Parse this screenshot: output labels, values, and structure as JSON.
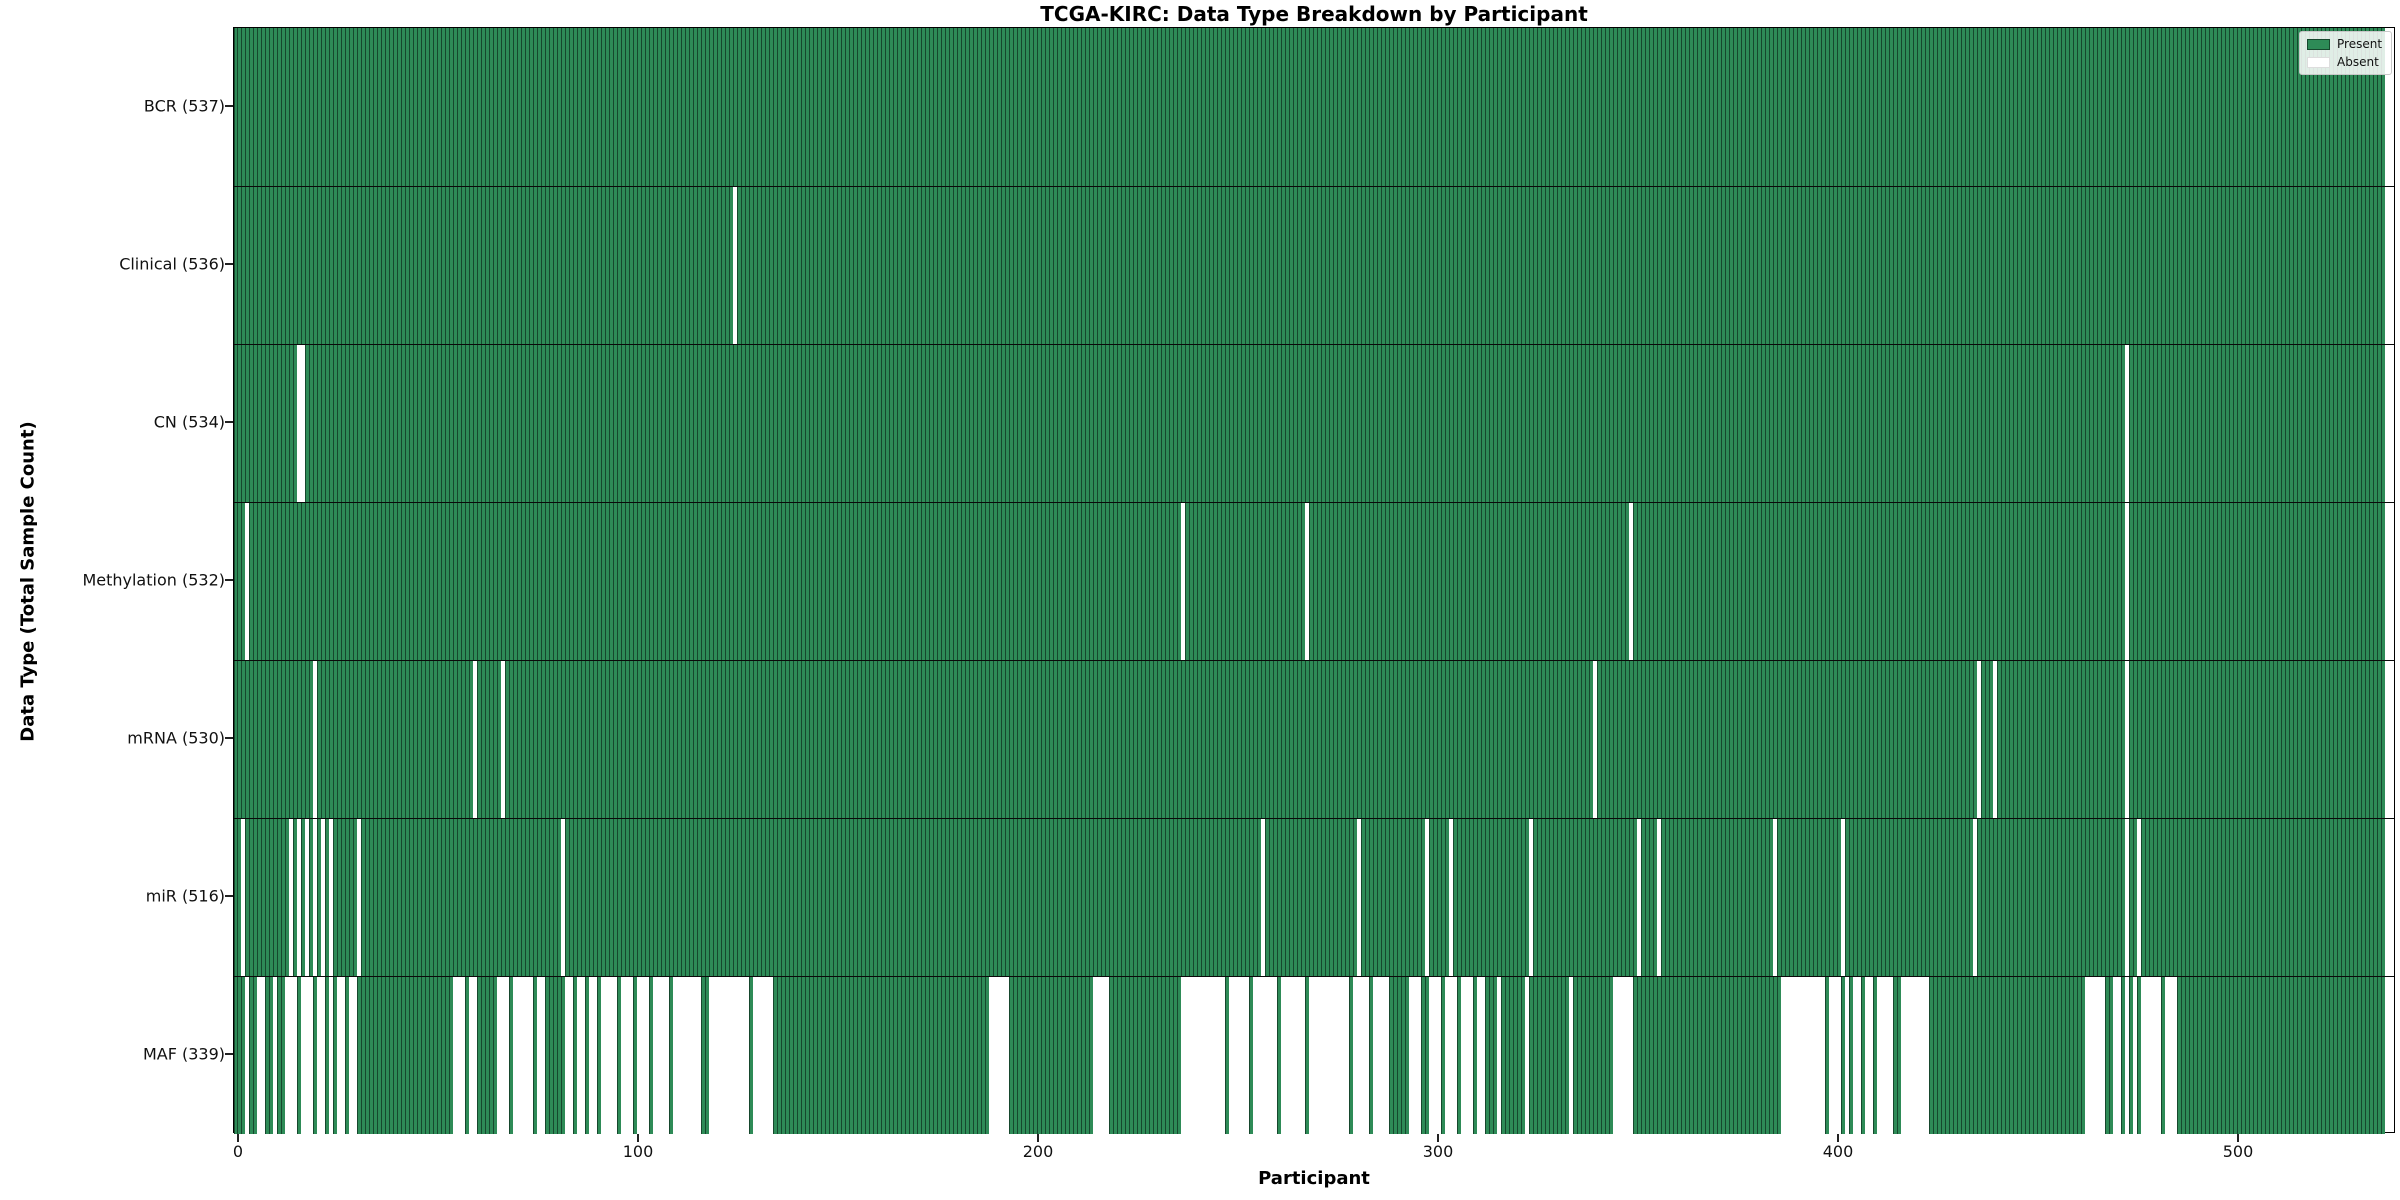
{
  "figure": {
    "title": "TCGA-KIRC: Data Type Breakdown by Participant"
  },
  "chart_data": {
    "type": "heatmap",
    "title": "TCGA-KIRC: Data Type Breakdown by Participant",
    "xlabel": "Participant",
    "ylabel": "Data Type (Total Sample Count)",
    "x_ticks": [
      0,
      100,
      200,
      300,
      400,
      500
    ],
    "n_participants": 537,
    "x_range": [
      0,
      541
    ],
    "grid": false,
    "colors": {
      "present": "#2e8b57",
      "edge": "#16482d",
      "absent": "#ffffff"
    },
    "legend": {
      "position": "upper right",
      "items": [
        {
          "label": "Present",
          "color": "#2e8b57"
        },
        {
          "label": "Absent",
          "color": "#ffffff"
        }
      ]
    },
    "rows": [
      {
        "label": "BCR (537)",
        "name": "BCR",
        "present_count": 537,
        "absent_participants": []
      },
      {
        "label": "Clinical (536)",
        "name": "Clinical",
        "present_count": 536,
        "absent_participants": [
          124
        ]
      },
      {
        "label": "CN (534)",
        "name": "CN",
        "present_count": 534,
        "absent_participants": [
          15,
          16,
          472
        ]
      },
      {
        "label": "Methylation (532)",
        "name": "Methylation",
        "present_count": 532,
        "absent_participants": [
          2,
          236,
          267,
          348,
          472
        ]
      },
      {
        "label": "mRNA (530)",
        "name": "mRNA",
        "present_count": 530,
        "absent_participants": [
          19,
          59,
          66,
          339,
          435,
          439,
          472
        ]
      },
      {
        "label": "miR (516)",
        "name": "miR",
        "present_count": 516,
        "absent_participants": [
          1,
          13,
          15,
          17,
          19,
          21,
          23,
          30,
          81,
          256,
          280,
          297,
          303,
          323,
          350,
          355,
          384,
          401,
          434,
          472,
          475
        ]
      },
      {
        "label": "MAF (339)",
        "name": "MAF",
        "present_count": 339,
        "absent_participants": [
          2,
          5,
          6,
          9,
          12,
          13,
          14,
          16,
          17,
          18,
          20,
          21,
          23,
          25,
          26,
          28,
          29,
          54,
          55,
          56,
          58,
          59,
          65,
          66,
          67,
          69,
          70,
          71,
          72,
          73,
          75,
          76,
          82,
          83,
          85,
          86,
          88,
          89,
          91,
          92,
          93,
          94,
          96,
          97,
          98,
          100,
          101,
          102,
          104,
          105,
          106,
          107,
          109,
          110,
          111,
          112,
          113,
          114,
          115,
          118,
          119,
          120,
          121,
          122,
          123,
          124,
          125,
          126,
          127,
          129,
          130,
          131,
          132,
          133,
          188,
          189,
          190,
          191,
          192,
          214,
          215,
          216,
          217,
          236,
          237,
          238,
          239,
          240,
          241,
          242,
          243,
          244,
          245,
          246,
          248,
          249,
          250,
          251,
          252,
          254,
          255,
          256,
          257,
          258,
          259,
          261,
          262,
          263,
          264,
          265,
          266,
          268,
          269,
          270,
          271,
          272,
          273,
          274,
          275,
          276,
          277,
          279,
          280,
          281,
          282,
          284,
          285,
          286,
          287,
          293,
          294,
          295,
          298,
          299,
          300,
          302,
          303,
          304,
          306,
          307,
          308,
          310,
          311,
          315,
          322,
          333,
          344,
          345,
          346,
          347,
          348,
          386,
          387,
          388,
          389,
          390,
          391,
          392,
          393,
          394,
          395,
          396,
          398,
          399,
          400,
          402,
          404,
          405,
          407,
          408,
          410,
          411,
          412,
          413,
          416,
          417,
          418,
          419,
          420,
          421,
          422,
          462,
          463,
          464,
          465,
          466,
          469,
          470,
          472,
          474,
          476,
          477,
          478,
          479,
          480,
          482,
          483,
          484
        ]
      }
    ]
  }
}
